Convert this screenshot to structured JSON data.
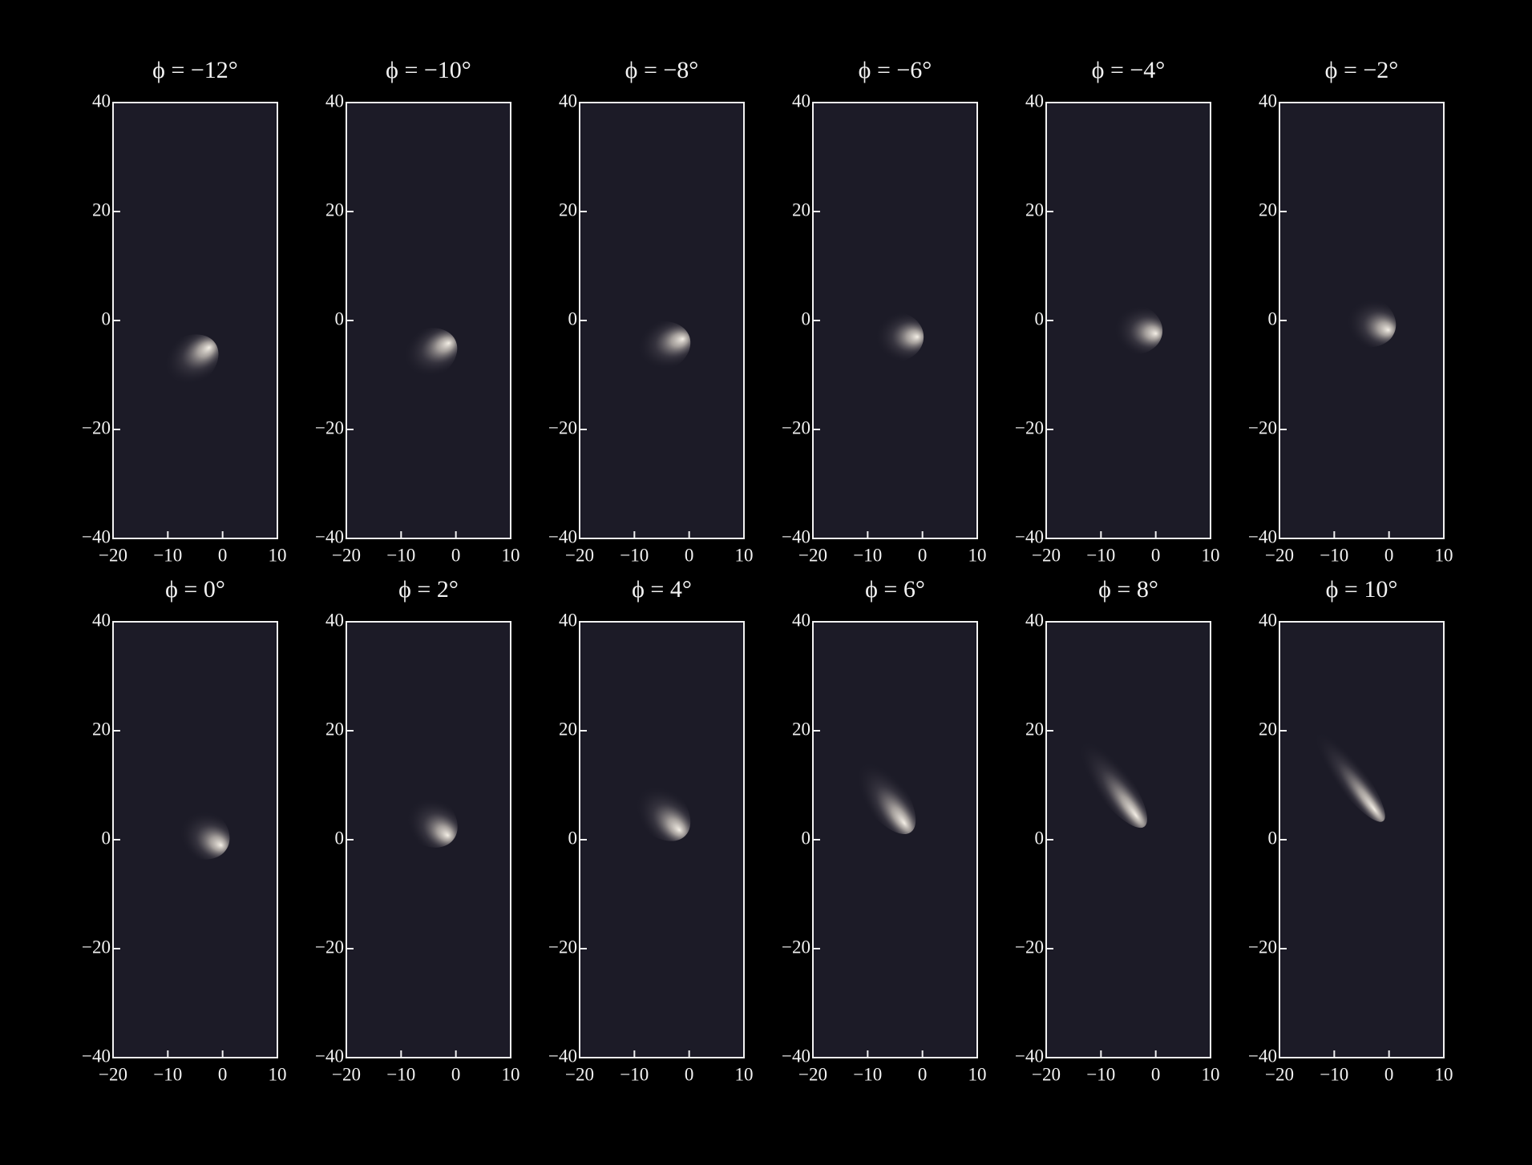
{
  "chart_data": [
    {
      "type": "image",
      "title": "ϕ = −12°",
      "xlim": [
        -20,
        10
      ],
      "ylim": [
        -40,
        40
      ],
      "xticks": [
        {
          "value": -20,
          "label": "−20"
        },
        {
          "value": -10,
          "label": "−10"
        },
        0,
        10
      ],
      "yticks": [
        {
          "value": -40,
          "label": "−40"
        },
        {
          "value": -20,
          "label": "−20"
        },
        0,
        20,
        40
      ]
    },
    {
      "type": "image",
      "title": "ϕ = −10°",
      "xlim": [
        -20,
        10
      ],
      "ylim": [
        -40,
        40
      ],
      "xticks": [
        {
          "value": -20,
          "label": "−20"
        },
        {
          "value": -10,
          "label": "−10"
        },
        0,
        10
      ],
      "yticks": [
        {
          "value": -40,
          "label": "−40"
        },
        {
          "value": -20,
          "label": "−20"
        },
        0,
        20,
        40
      ]
    },
    {
      "type": "image",
      "title": "ϕ = −8°",
      "xlim": [
        -20,
        10
      ],
      "ylim": [
        -40,
        40
      ],
      "xticks": [
        {
          "value": -20,
          "label": "−20"
        },
        {
          "value": -10,
          "label": "−10"
        },
        0,
        10
      ],
      "yticks": [
        {
          "value": -40,
          "label": "−40"
        },
        {
          "value": -20,
          "label": "−20"
        },
        0,
        20,
        40
      ]
    },
    {
      "type": "image",
      "title": "ϕ = −6°",
      "xlim": [
        -20,
        10
      ],
      "ylim": [
        -40,
        40
      ],
      "xticks": [
        {
          "value": -20,
          "label": "−20"
        },
        {
          "value": -10,
          "label": "−10"
        },
        0,
        10
      ],
      "yticks": [
        {
          "value": -40,
          "label": "−40"
        },
        {
          "value": -20,
          "label": "−20"
        },
        0,
        20,
        40
      ]
    },
    {
      "type": "image",
      "title": "ϕ = −4°",
      "xlim": [
        -20,
        10
      ],
      "ylim": [
        -40,
        40
      ],
      "xticks": [
        {
          "value": -20,
          "label": "−20"
        },
        {
          "value": -10,
          "label": "−10"
        },
        0,
        10
      ],
      "yticks": [
        {
          "value": -40,
          "label": "−40"
        },
        {
          "value": -20,
          "label": "−20"
        },
        0,
        20,
        40
      ]
    },
    {
      "type": "image",
      "title": "ϕ = −2°",
      "xlim": [
        -20,
        10
      ],
      "ylim": [
        -40,
        40
      ],
      "xticks": [
        {
          "value": -20,
          "label": "−20"
        },
        {
          "value": -10,
          "label": "−10"
        },
        0,
        10
      ],
      "yticks": [
        {
          "value": -40,
          "label": "−40"
        },
        {
          "value": -20,
          "label": "−20"
        },
        0,
        20,
        40
      ]
    },
    {
      "type": "image",
      "title": "ϕ = 0°",
      "xlim": [
        -20,
        10
      ],
      "ylim": [
        -40,
        40
      ],
      "xticks": [
        {
          "value": -20,
          "label": "−20"
        },
        {
          "value": -10,
          "label": "−10"
        },
        0,
        10
      ],
      "yticks": [
        {
          "value": -40,
          "label": "−40"
        },
        {
          "value": -20,
          "label": "−20"
        },
        0,
        20,
        40
      ]
    },
    {
      "type": "image",
      "title": "ϕ = 2°",
      "xlim": [
        -20,
        10
      ],
      "ylim": [
        -40,
        40
      ],
      "xticks": [
        {
          "value": -20,
          "label": "−20"
        },
        {
          "value": -10,
          "label": "−10"
        },
        0,
        10
      ],
      "yticks": [
        {
          "value": -40,
          "label": "−40"
        },
        {
          "value": -20,
          "label": "−20"
        },
        0,
        20,
        40
      ]
    },
    {
      "type": "image",
      "title": "ϕ = 4°",
      "xlim": [
        -20,
        10
      ],
      "ylim": [
        -40,
        40
      ],
      "xticks": [
        {
          "value": -20,
          "label": "−20"
        },
        {
          "value": -10,
          "label": "−10"
        },
        0,
        10
      ],
      "yticks": [
        {
          "value": -40,
          "label": "−40"
        },
        {
          "value": -20,
          "label": "−20"
        },
        0,
        20,
        40
      ]
    },
    {
      "type": "image",
      "title": "ϕ = 6°",
      "xlim": [
        -20,
        10
      ],
      "ylim": [
        -40,
        40
      ],
      "xticks": [
        {
          "value": -20,
          "label": "−20"
        },
        {
          "value": -10,
          "label": "−10"
        },
        0,
        10
      ],
      "yticks": [
        {
          "value": -40,
          "label": "−40"
        },
        {
          "value": -20,
          "label": "−20"
        },
        0,
        20,
        40
      ]
    },
    {
      "type": "image",
      "title": "ϕ = 8°",
      "xlim": [
        -20,
        10
      ],
      "ylim": [
        -40,
        40
      ],
      "xticks": [
        {
          "value": -20,
          "label": "−20"
        },
        {
          "value": -10,
          "label": "−10"
        },
        0,
        10
      ],
      "yticks": [
        {
          "value": -40,
          "label": "−40"
        },
        {
          "value": -20,
          "label": "−20"
        },
        0,
        20,
        40
      ]
    },
    {
      "type": "image",
      "title": "ϕ = 10°",
      "xlim": [
        -20,
        10
      ],
      "ylim": [
        -40,
        40
      ],
      "xticks": [
        {
          "value": -20,
          "label": "−20"
        },
        {
          "value": -10,
          "label": "−10"
        },
        0,
        10
      ],
      "yticks": [
        {
          "value": -40,
          "label": "−40"
        },
        {
          "value": -20,
          "label": "−20"
        },
        0,
        20,
        40
      ]
    }
  ]
}
